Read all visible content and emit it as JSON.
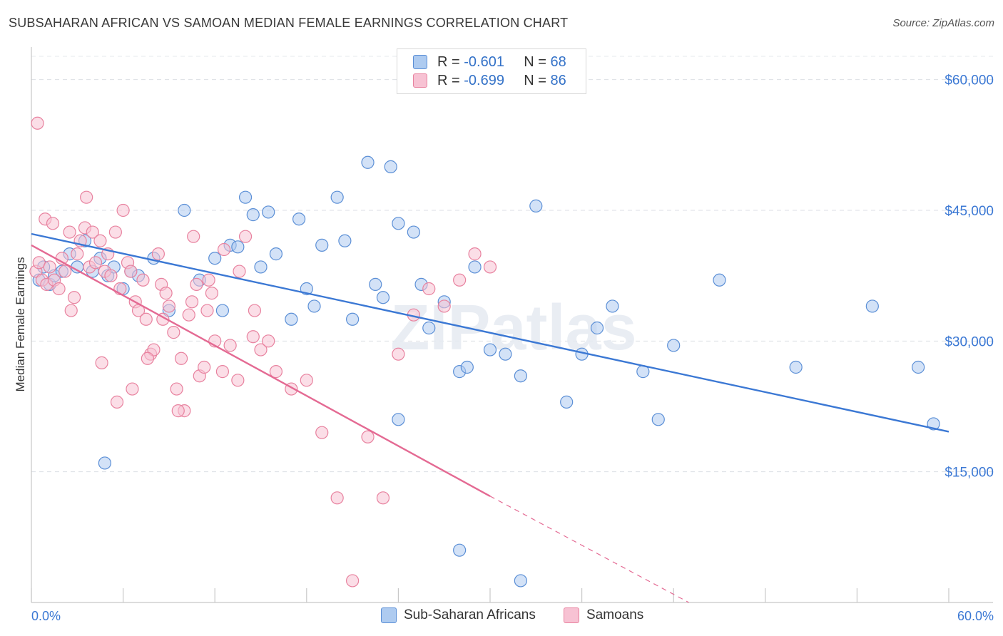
{
  "title": "SUBSAHARAN AFRICAN VS SAMOAN MEDIAN FEMALE EARNINGS CORRELATION CHART",
  "source": "Source: ZipAtlas.com",
  "watermark": "ZIPatlas",
  "legend": {
    "r_label": "R =",
    "n_label": "N =",
    "series": [
      {
        "name": "Sub-Saharan Africans",
        "r": "-0.601",
        "n": "68",
        "fill": "#aecbf0",
        "stroke": "#5b8fd6"
      },
      {
        "name": "Samoans",
        "r": "-0.699",
        "n": "86",
        "fill": "#f7c2d3",
        "stroke": "#e8829f"
      }
    ]
  },
  "chart_data": {
    "type": "scatter",
    "title": "SUBSAHARAN AFRICAN VS SAMOAN MEDIAN FEMALE EARNINGS CORRELATION CHART",
    "xlabel": "",
    "ylabel": "Median Female Earnings",
    "xlim": [
      0,
      60
    ],
    "ylim": [
      0,
      63000
    ],
    "x_tick_labels": {
      "min": "0.0%",
      "max": "60.0%"
    },
    "y_ticks": [
      15000,
      30000,
      45000,
      60000
    ],
    "y_tick_labels": [
      "$15,000",
      "$30,000",
      "$45,000",
      "$60,000"
    ],
    "grid": true,
    "legend_position": "top-center",
    "colors": {
      "blue": "#3b78d4",
      "pink": "#e46a93",
      "axis_text": "#3b78d4"
    },
    "series": [
      {
        "name": "Sub-Saharan Africans",
        "x": [
          0.5,
          0.8,
          1.2,
          1.5,
          2.0,
          2.5,
          3.0,
          3.5,
          4.0,
          4.5,
          5.0,
          6.0,
          6.5,
          7.0,
          8.0,
          9.0,
          10.0,
          11.0,
          12.0,
          12.5,
          13.0,
          13.5,
          14.0,
          14.5,
          15.0,
          15.5,
          16.0,
          17.0,
          17.5,
          18.0,
          18.5,
          19.0,
          20.0,
          20.5,
          21.0,
          22.0,
          22.5,
          23.0,
          23.5,
          24.0,
          25.0,
          25.5,
          26.0,
          27.0,
          28.0,
          28.5,
          29.0,
          30.0,
          31.0,
          32.0,
          33.0,
          35.0,
          36.0,
          38.0,
          40.0,
          41.0,
          42.0,
          45.0,
          50.0,
          55.0,
          58.0,
          59.0,
          28.0,
          32.0,
          37.0,
          24.0,
          4.8,
          5.4
        ],
        "y": [
          37000,
          38500,
          36500,
          37500,
          38000,
          40000,
          38500,
          41500,
          38000,
          39500,
          37500,
          36000,
          38000,
          37500,
          39500,
          33500,
          45000,
          37000,
          39500,
          33500,
          41000,
          40800,
          46500,
          44500,
          38500,
          44800,
          40000,
          32500,
          44000,
          36000,
          34000,
          41000,
          46500,
          41500,
          32500,
          50500,
          36500,
          35000,
          50000,
          43500,
          42500,
          36500,
          31500,
          34500,
          26500,
          27000,
          38500,
          29000,
          28500,
          26000,
          45500,
          23000,
          28500,
          34000,
          26500,
          21000,
          29500,
          37000,
          27000,
          34000,
          27000,
          20500,
          6000,
          2500,
          31500,
          21000,
          16000,
          38500
        ],
        "fill": "#aecbf0",
        "stroke": "#5b8fd6"
      },
      {
        "name": "Samoans",
        "x": [
          0.3,
          0.5,
          0.7,
          1.0,
          1.2,
          1.5,
          1.8,
          2.0,
          2.2,
          2.5,
          2.8,
          3.0,
          3.2,
          3.5,
          3.8,
          4.0,
          4.2,
          4.5,
          4.8,
          5.0,
          5.2,
          5.5,
          5.8,
          6.0,
          6.3,
          6.5,
          6.8,
          7.0,
          7.3,
          7.5,
          7.8,
          8.0,
          8.3,
          8.5,
          8.8,
          9.0,
          9.3,
          9.5,
          9.8,
          10.0,
          10.3,
          10.5,
          10.8,
          11.0,
          11.3,
          11.5,
          11.8,
          12.0,
          12.5,
          13.0,
          13.5,
          14.0,
          14.5,
          15.0,
          15.5,
          16.0,
          17.0,
          18.0,
          19.0,
          20.0,
          21.0,
          22.0,
          23.0,
          24.0,
          25.0,
          26.0,
          27.0,
          28.0,
          29.0,
          30.0,
          0.4,
          0.9,
          1.4,
          2.6,
          3.6,
          4.6,
          5.6,
          6.6,
          7.6,
          8.6,
          9.6,
          10.6,
          11.6,
          12.6,
          13.6,
          14.6
        ],
        "y": [
          38000,
          39000,
          37000,
          36500,
          38500,
          37000,
          36000,
          39500,
          38000,
          42500,
          35000,
          40000,
          41500,
          43000,
          38500,
          42500,
          39000,
          41500,
          38000,
          40000,
          37500,
          42500,
          36000,
          45000,
          39000,
          38000,
          34500,
          33500,
          37000,
          32500,
          28500,
          29000,
          40000,
          36500,
          35500,
          34000,
          31000,
          24500,
          28000,
          22000,
          33000,
          34500,
          36500,
          26000,
          27000,
          33500,
          35500,
          30000,
          26500,
          29500,
          25500,
          42000,
          30500,
          29000,
          30000,
          26500,
          24500,
          25500,
          19500,
          12000,
          2500,
          19000,
          12000,
          28500,
          33000,
          36000,
          34000,
          37000,
          40000,
          38500,
          55000,
          44000,
          43500,
          33500,
          46500,
          27500,
          23000,
          24500,
          28000,
          32500,
          22000,
          42000,
          37000,
          40500,
          38000,
          33500
        ],
        "fill": "#f7c2d3",
        "stroke": "#e8829f"
      }
    ],
    "trend_lines": [
      {
        "series": "Sub-Saharan Africans",
        "x_start": 0,
        "y_start": 42300,
        "x_end": 60,
        "y_end": 19600,
        "style": "solid"
      },
      {
        "series": "Samoans",
        "x_start": 0,
        "y_start": 41000,
        "x_end": 30,
        "y_end": 12200,
        "style": "solid"
      },
      {
        "series": "Samoans",
        "x_start": 30,
        "y_start": 12200,
        "x_end": 43,
        "y_end": 0,
        "style": "dashed"
      }
    ]
  }
}
